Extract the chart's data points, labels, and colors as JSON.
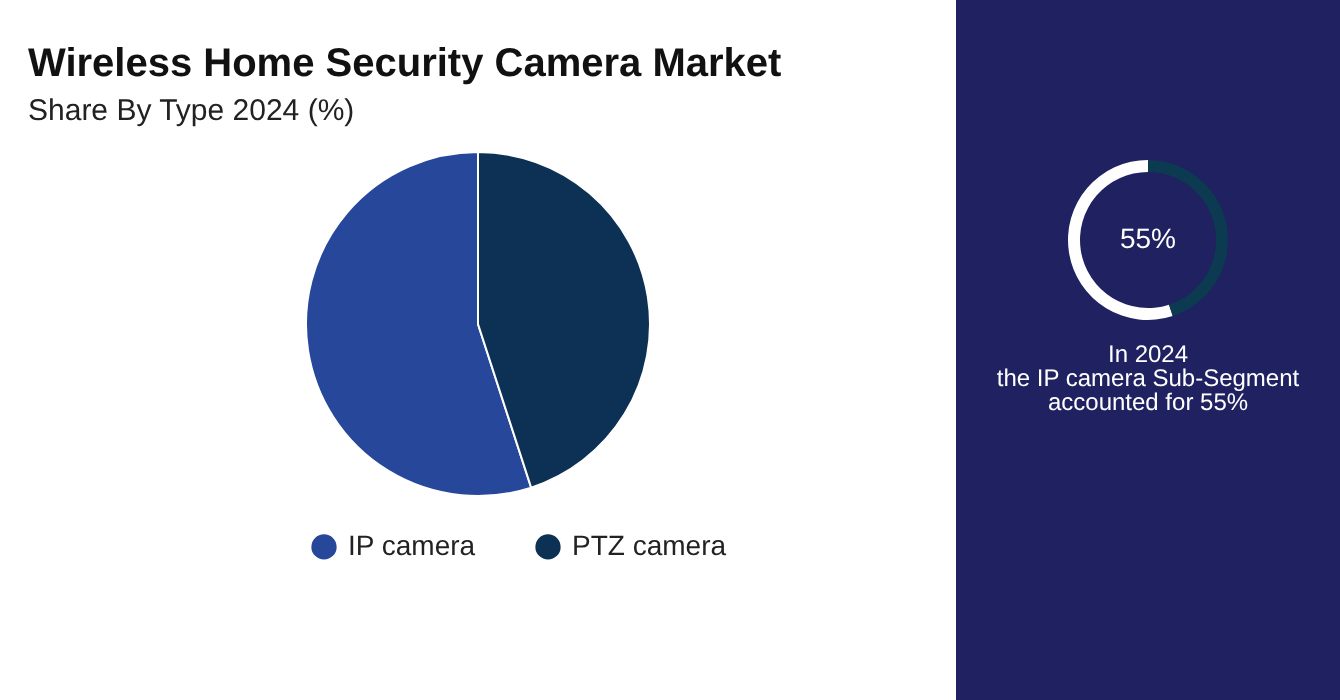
{
  "chart_data": [
    {
      "type": "pie",
      "title": "Wireless Home Security Camera Market",
      "subtitle": "Share By Type 2024 (%)",
      "categories": [
        "IP camera",
        "PTZ camera"
      ],
      "values": [
        55,
        45
      ],
      "colors": [
        "#26479a",
        "#0c3154"
      ],
      "legend": "bottom"
    },
    {
      "type": "donut",
      "categories": [
        null,
        null
      ],
      "values": [
        55,
        45
      ],
      "colors": [
        "#ffffff",
        "#0c3a50"
      ],
      "value_labels": [
        "55%",
        null
      ],
      "annotations": [
        "In 2024",
        "the IP camera Sub-Segment",
        "accounted for 55%"
      ]
    }
  ]
}
